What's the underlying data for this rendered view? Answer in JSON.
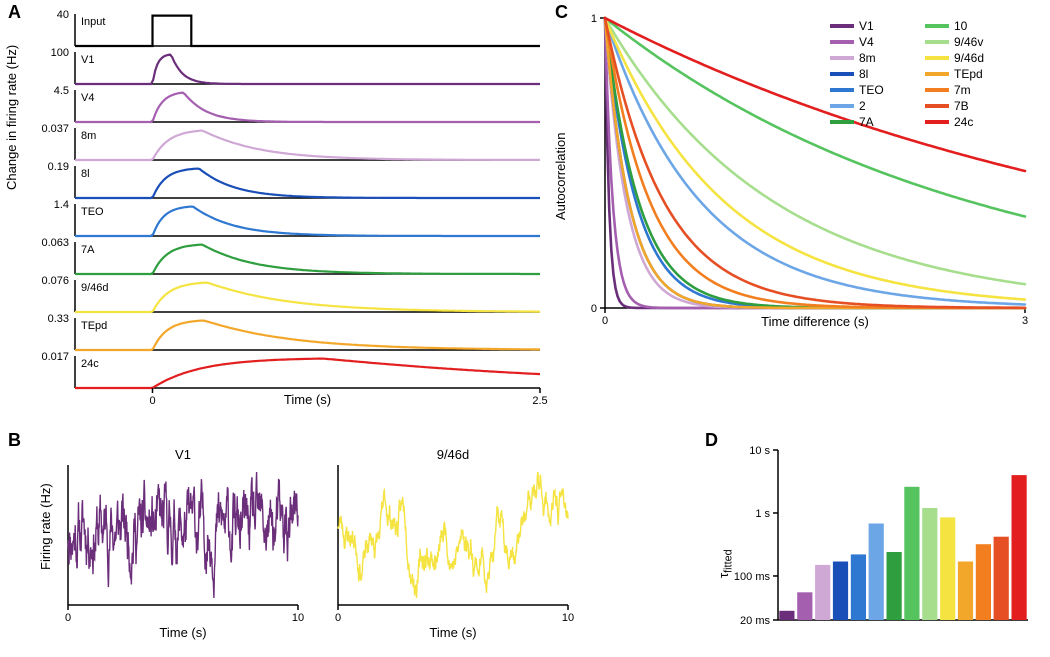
{
  "regions": [
    {
      "id": "V1",
      "label": "V1",
      "color": "#6b2e7a"
    },
    {
      "id": "V4",
      "label": "V4",
      "color": "#a45faf"
    },
    {
      "id": "8m",
      "label": "8m",
      "color": "#d0a8d6"
    },
    {
      "id": "8l",
      "label": "8l",
      "color": "#1a4fb7"
    },
    {
      "id": "TEO",
      "label": "TEO",
      "color": "#2e78d1"
    },
    {
      "id": "2",
      "label": "2",
      "color": "#6ca6e6"
    },
    {
      "id": "7A",
      "label": "7A",
      "color": "#2e9e3f"
    },
    {
      "id": "10",
      "label": "10",
      "color": "#55c45e"
    },
    {
      "id": "9_46v",
      "label": "9/46v",
      "color": "#a7de8e"
    },
    {
      "id": "9_46d",
      "label": "9/46d",
      "color": "#f5e341"
    },
    {
      "id": "TEpd",
      "label": "TEpd",
      "color": "#f3a72a"
    },
    {
      "id": "7m",
      "label": "7m",
      "color": "#f27e1f"
    },
    {
      "id": "7B",
      "label": "7B",
      "color": "#e64f23"
    },
    {
      "id": "24c",
      "label": "24c",
      "color": "#e21e1e"
    }
  ],
  "panelA": {
    "label": "A",
    "x_label": "Time (s)",
    "y_label": "Change in firing rate (Hz)",
    "x_min": -0.5,
    "x_max": 2.5,
    "x_ticks": [
      0,
      2.5
    ],
    "stim_on": 0.0,
    "stim_off": 0.25,
    "rows": [
      {
        "region": "Input",
        "y_label": "40",
        "tau_rise": 0.001,
        "tau_decay": 0.001,
        "peak_t": 0.0,
        "amp": 40,
        "is_input": true
      },
      {
        "region": "V1",
        "y_label": "100",
        "tau_rise": 0.03,
        "tau_decay": 0.07,
        "peak_t": 0.12,
        "amp": 100
      },
      {
        "region": "V4",
        "y_label": "4.5",
        "tau_rise": 0.06,
        "tau_decay": 0.14,
        "peak_t": 0.2,
        "amp": 4.5
      },
      {
        "region": "8m",
        "y_label": "0.037",
        "tau_rise": 0.1,
        "tau_decay": 0.35,
        "peak_t": 0.32,
        "amp": 0.037
      },
      {
        "region": "8l",
        "y_label": "0.19",
        "tau_rise": 0.08,
        "tau_decay": 0.22,
        "peak_t": 0.3,
        "amp": 0.19
      },
      {
        "region": "TEO",
        "y_label": "1.4",
        "tau_rise": 0.07,
        "tau_decay": 0.25,
        "peak_t": 0.26,
        "amp": 1.4
      },
      {
        "region": "7A",
        "y_label": "0.063",
        "tau_rise": 0.09,
        "tau_decay": 0.32,
        "peak_t": 0.32,
        "amp": 0.063
      },
      {
        "region": "9_46d",
        "y_label": "0.076",
        "tau_rise": 0.1,
        "tau_decay": 0.5,
        "peak_t": 0.35,
        "amp": 0.076
      },
      {
        "region": "TEpd",
        "y_label": "0.33",
        "tau_rise": 0.09,
        "tau_decay": 0.55,
        "peak_t": 0.33,
        "amp": 0.33
      },
      {
        "region": "24c",
        "y_label": "0.017",
        "tau_rise": 0.3,
        "tau_decay": 1.8,
        "peak_t": 1.1,
        "amp": 0.017
      }
    ],
    "line_width": 2.2
  },
  "panelB": {
    "label": "B",
    "y_label": "Firing rate (Hz)",
    "x_label": "Time (s)",
    "x_min": 0,
    "x_max": 10,
    "x_ticks": [
      0,
      10
    ],
    "plots": [
      {
        "region": "V1",
        "title": "V1",
        "tau": 0.08,
        "seed": 11
      },
      {
        "region": "9_46d",
        "title": "9/46d",
        "tau": 1.2,
        "seed": 23
      }
    ],
    "line_width": 1.4
  },
  "panelC": {
    "label": "C",
    "x_label": "Time difference (s)",
    "y_label": "Autocorrelation",
    "x_min": 0,
    "x_max": 3,
    "y_min": 0,
    "y_max": 1,
    "x_ticks": [
      0,
      3
    ],
    "y_ticks": [
      0,
      1
    ],
    "tau_per_region": {
      "V1": 0.028,
      "V4": 0.055,
      "8m": 0.15,
      "8l": 0.17,
      "TEO": 0.22,
      "2": 0.68,
      "7A": 0.24,
      "10": 2.6,
      "9_46v": 1.2,
      "9_46d": 0.85,
      "TEpd": 0.17,
      "7m": 0.32,
      "7B": 0.42,
      "24c": 4.0
    },
    "line_width": 2.6,
    "legend_cols": 2
  },
  "panelD": {
    "label": "D",
    "y_label": "τ_fitted",
    "y_ticklabels": [
      "20 ms",
      "100 ms",
      "1 s",
      "10 s"
    ],
    "y_tickvalues": [
      0.02,
      0.1,
      1,
      10
    ],
    "y_min": 0.02,
    "y_max": 10,
    "bars_order": [
      "V1",
      "V4",
      "8m",
      "8l",
      "TEO",
      "2",
      "7A",
      "10",
      "9_46v",
      "9_46d",
      "TEpd",
      "7m",
      "7B",
      "24c"
    ],
    "bar_width_ratio": 0.85
  },
  "fonts": {
    "panel_label_pt": 18,
    "axis_label_pt": 13,
    "tick_label_pt": 11,
    "legend_pt": 12
  }
}
